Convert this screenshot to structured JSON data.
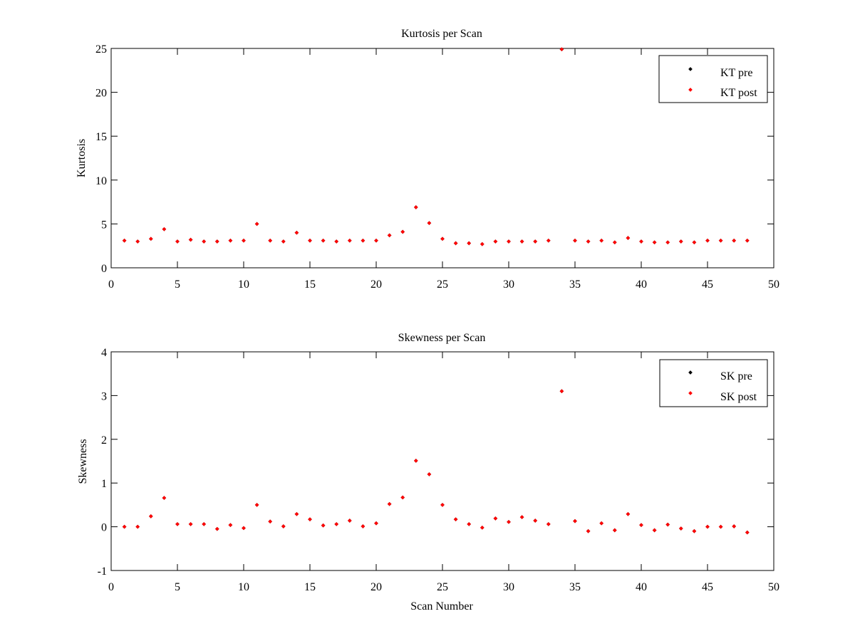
{
  "chart_data": [
    {
      "type": "scatter",
      "title": "Kurtosis per Scan",
      "xlabel": "",
      "ylabel": "Kurtosis",
      "xlim": [
        0,
        50
      ],
      "ylim": [
        0,
        25
      ],
      "xticks": [
        "0",
        "5",
        "10",
        "15",
        "20",
        "25",
        "30",
        "35",
        "40",
        "45",
        "50"
      ],
      "yticks": [
        "0",
        "5",
        "10",
        "15",
        "20",
        "25"
      ],
      "grid": false,
      "legend_position": "top-right",
      "x": [
        1,
        2,
        3,
        4,
        5,
        6,
        7,
        8,
        9,
        10,
        11,
        12,
        13,
        14,
        15,
        16,
        17,
        18,
        19,
        20,
        21,
        22,
        23,
        24,
        25,
        26,
        27,
        28,
        29,
        30,
        31,
        32,
        33,
        34,
        35,
        36,
        37,
        38,
        39,
        40,
        41,
        42,
        43,
        44,
        45,
        46,
        47,
        48
      ],
      "series": [
        {
          "name": "KT pre",
          "color": "#000000",
          "values": [
            3.1,
            3.0,
            3.3,
            4.4,
            3.0,
            3.2,
            3.0,
            3.0,
            3.1,
            3.1,
            5.0,
            3.1,
            3.0,
            4.0,
            3.1,
            3.1,
            3.0,
            3.1,
            3.1,
            3.1,
            3.7,
            4.1,
            6.9,
            5.1,
            3.3,
            2.8,
            2.8,
            2.7,
            3.0,
            3.0,
            3.0,
            3.0,
            3.1,
            24.9,
            3.1,
            3.0,
            3.1,
            2.9,
            3.4,
            3.0,
            2.9,
            2.9,
            3.0,
            2.9,
            3.1,
            3.1,
            3.1,
            3.1
          ]
        },
        {
          "name": "KT post",
          "color": "#ff0000",
          "values": [
            3.1,
            3.0,
            3.3,
            4.4,
            3.0,
            3.2,
            3.0,
            3.0,
            3.1,
            3.1,
            5.0,
            3.1,
            3.0,
            4.0,
            3.1,
            3.1,
            3.0,
            3.1,
            3.1,
            3.1,
            3.7,
            4.1,
            6.9,
            5.1,
            3.3,
            2.8,
            2.8,
            2.7,
            3.0,
            3.0,
            3.0,
            3.0,
            3.1,
            24.9,
            3.1,
            3.0,
            3.1,
            2.9,
            3.4,
            3.0,
            2.9,
            2.9,
            3.0,
            2.9,
            3.1,
            3.1,
            3.1,
            3.1
          ]
        }
      ]
    },
    {
      "type": "scatter",
      "title": "Skewness per Scan",
      "xlabel": "Scan Number",
      "ylabel": "Skewness",
      "xlim": [
        0,
        50
      ],
      "ylim": [
        -1,
        4
      ],
      "xticks": [
        "0",
        "5",
        "10",
        "15",
        "20",
        "25",
        "30",
        "35",
        "40",
        "45",
        "50"
      ],
      "yticks": [
        "-1",
        "0",
        "1",
        "2",
        "3",
        "4"
      ],
      "grid": false,
      "legend_position": "top-right",
      "x": [
        1,
        2,
        3,
        4,
        5,
        6,
        7,
        8,
        9,
        10,
        11,
        12,
        13,
        14,
        15,
        16,
        17,
        18,
        19,
        20,
        21,
        22,
        23,
        24,
        25,
        26,
        27,
        28,
        29,
        30,
        31,
        32,
        33,
        34,
        35,
        36,
        37,
        38,
        39,
        40,
        41,
        42,
        43,
        44,
        45,
        46,
        47,
        48
      ],
      "series": [
        {
          "name": "SK pre",
          "color": "#000000",
          "values": [
            0.0,
            0.0,
            0.24,
            0.66,
            0.06,
            0.06,
            0.06,
            -0.05,
            0.04,
            -0.03,
            0.5,
            0.12,
            0.01,
            0.29,
            0.17,
            0.03,
            0.06,
            0.14,
            0.01,
            0.08,
            0.52,
            0.67,
            1.51,
            1.2,
            0.5,
            0.17,
            0.06,
            -0.02,
            0.19,
            0.11,
            0.22,
            0.14,
            0.06,
            3.1,
            0.13,
            -0.1,
            0.08,
            -0.08,
            0.29,
            0.04,
            -0.08,
            0.05,
            -0.04,
            -0.1,
            0.0,
            0.0,
            0.01,
            -0.13
          ]
        },
        {
          "name": "SK post",
          "color": "#ff0000",
          "values": [
            0.0,
            0.0,
            0.24,
            0.66,
            0.06,
            0.06,
            0.06,
            -0.05,
            0.04,
            -0.03,
            0.5,
            0.12,
            0.01,
            0.29,
            0.17,
            0.03,
            0.06,
            0.14,
            0.01,
            0.08,
            0.52,
            0.67,
            1.51,
            1.2,
            0.5,
            0.17,
            0.06,
            -0.02,
            0.19,
            0.11,
            0.22,
            0.14,
            0.06,
            3.1,
            0.13,
            -0.1,
            0.08,
            -0.08,
            0.29,
            0.04,
            -0.08,
            0.05,
            -0.04,
            -0.1,
            0.0,
            0.0,
            0.01,
            -0.13
          ]
        }
      ]
    }
  ]
}
